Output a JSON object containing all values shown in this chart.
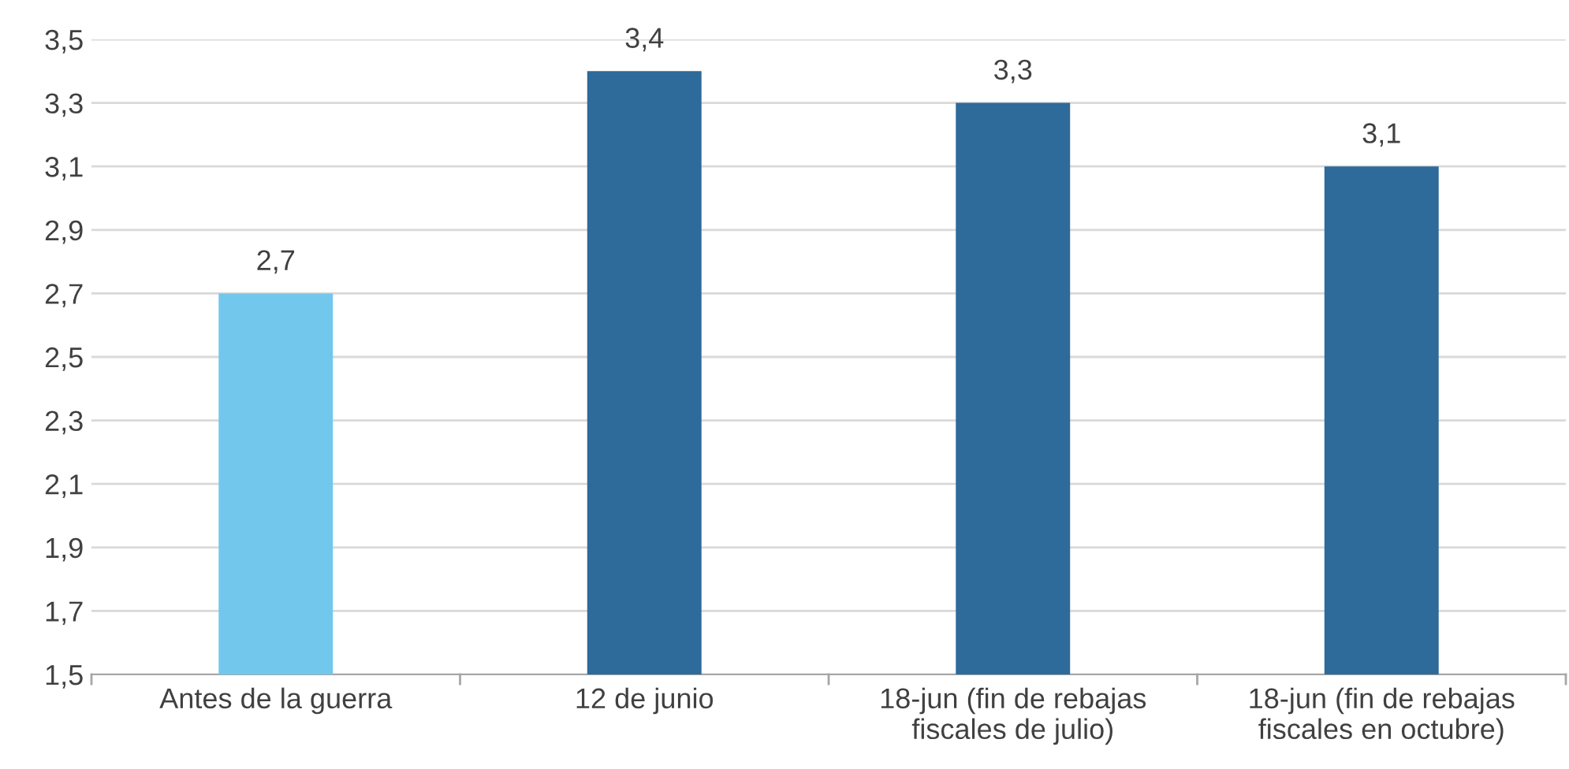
{
  "chart_data": {
    "type": "bar",
    "categories": [
      "Antes de la guerra",
      "12 de junio",
      "18-jun (fin de rebajas\nfiscales de julio)",
      "18-jun (fin de rebajas\nfiscales en octubre)"
    ],
    "values": [
      2.7,
      3.4,
      3.3,
      3.1
    ],
    "colors": [
      "#72c7ec",
      "#2e6a9a",
      "#2e6a9a",
      "#2e6a9a"
    ],
    "value_labels": [
      "2,7",
      "3,4",
      "3,3",
      "3,1"
    ],
    "ylim": [
      1.5,
      3.5
    ],
    "yticks": [
      {
        "value": 1.5,
        "label": "1,5"
      },
      {
        "value": 1.7,
        "label": "1,7"
      },
      {
        "value": 1.9,
        "label": "1,9"
      },
      {
        "value": 2.1,
        "label": "2,1"
      },
      {
        "value": 2.3,
        "label": "2,3"
      },
      {
        "value": 2.5,
        "label": "2,5"
      },
      {
        "value": 2.7,
        "label": "2,7"
      },
      {
        "value": 2.9,
        "label": "2,9"
      },
      {
        "value": 3.1,
        "label": "3,1"
      },
      {
        "value": 3.3,
        "label": "3,3"
      },
      {
        "value": 3.5,
        "label": "3,5"
      }
    ],
    "grid": "y"
  }
}
